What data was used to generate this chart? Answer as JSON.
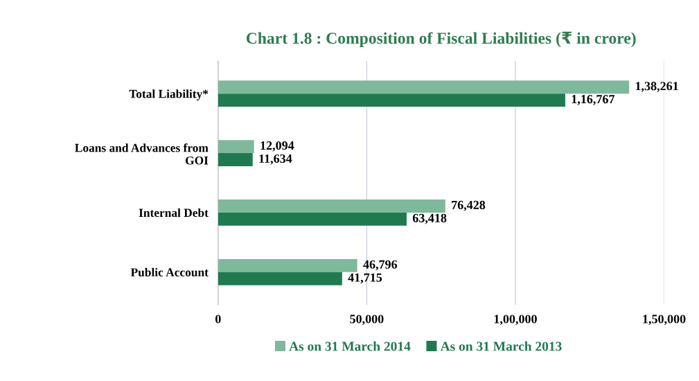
{
  "chart_data": {
    "type": "bar",
    "orientation": "horizontal",
    "title": "Chart 1.8 : Composition of Fiscal Liabilities (₹ in crore)",
    "categories": [
      "Total Liability*",
      "Loans and Advances from\nGOI",
      "Internal Debt",
      "Public Account"
    ],
    "series": [
      {
        "name": "As on 31 March 2014",
        "color": "#7fb99b",
        "values": [
          138261,
          12094,
          76428,
          46796
        ],
        "value_labels": [
          "1,38,261",
          "12,094",
          "76,428",
          "46,796"
        ]
      },
      {
        "name": "As on 31 March 2013",
        "color": "#1f7a50",
        "values": [
          116767,
          11634,
          63418,
          41715
        ],
        "value_labels": [
          "1,16,767",
          "11,634",
          "63,418",
          "41,715"
        ]
      }
    ],
    "xlim": [
      0,
      150000
    ],
    "xticks": [
      0,
      {
        "value": 50000,
        "label": "50,000"
      },
      {
        "value": 100000,
        "label": "1,00,000"
      },
      {
        "value": 150000,
        "label": "1,50,000"
      }
    ],
    "grid": "x",
    "legend": "bottom"
  }
}
